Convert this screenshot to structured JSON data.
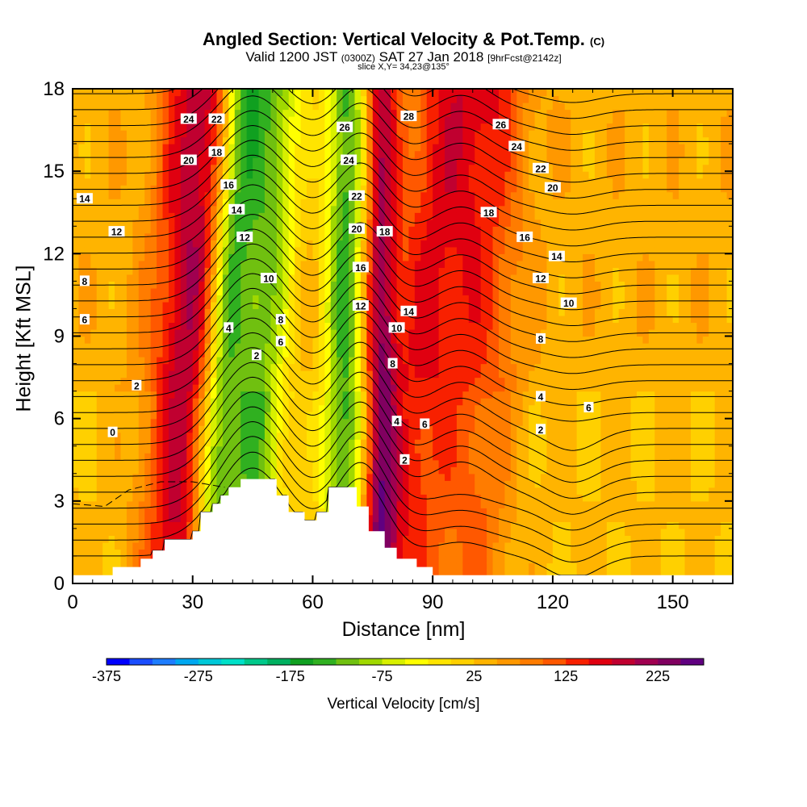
{
  "chart_data": {
    "type": "heatmap",
    "title": "Angled Section: Vertical Velocity & Pot.Temp.",
    "title_suffix": "(C)",
    "subtitle_main": "Valid 1200 JST",
    "subtitle_utc": "(0300Z)",
    "subtitle_date": "SAT 27 Jan 2018",
    "subtitle_fcst": "[9hrFcst@2142z]",
    "slice": "slice X,Y= 34,23@135°",
    "xlabel": "Distance [nm]",
    "ylabel": "Height [Kft MSL]",
    "xlim": [
      0,
      165
    ],
    "ylim": [
      0,
      18
    ],
    "x_ticks": [
      "0",
      "30",
      "60",
      "90",
      "120",
      "150"
    ],
    "y_ticks": [
      "0",
      "3",
      "6",
      "9",
      "12",
      "15",
      "18"
    ],
    "terrain_profile": [
      [
        0,
        0.3
      ],
      [
        10,
        0.3
      ],
      [
        10,
        0.6
      ],
      [
        17,
        0.6
      ],
      [
        17,
        0.9
      ],
      [
        20,
        0.9
      ],
      [
        20,
        1.2
      ],
      [
        23,
        1.2
      ],
      [
        23,
        1.6
      ],
      [
        30,
        1.6
      ],
      [
        30,
        1.9
      ],
      [
        32,
        1.9
      ],
      [
        32,
        2.6
      ],
      [
        35,
        2.6
      ],
      [
        35,
        2.9
      ],
      [
        37,
        2.9
      ],
      [
        37,
        3.2
      ],
      [
        39,
        3.2
      ],
      [
        39,
        3.5
      ],
      [
        42,
        3.5
      ],
      [
        42,
        3.8
      ],
      [
        51,
        3.8
      ],
      [
        51,
        3.2
      ],
      [
        54,
        3.2
      ],
      [
        54,
        2.6
      ],
      [
        58,
        2.6
      ],
      [
        58,
        2.3
      ],
      [
        61,
        2.3
      ],
      [
        61,
        2.6
      ],
      [
        64,
        2.6
      ],
      [
        64,
        3.5
      ],
      [
        71,
        3.5
      ],
      [
        71,
        2.8
      ],
      [
        74,
        2.8
      ],
      [
        74,
        1.9
      ],
      [
        78,
        1.9
      ],
      [
        78,
        1.3
      ],
      [
        81,
        1.3
      ],
      [
        81,
        0.9
      ],
      [
        86,
        0.9
      ],
      [
        86,
        0.6
      ],
      [
        90,
        0.6
      ],
      [
        90,
        0.3
      ],
      [
        165,
        0.3
      ]
    ],
    "theta_levels": [
      0,
      2,
      4,
      6,
      8,
      10,
      12,
      14,
      16,
      18,
      20,
      22,
      24,
      26,
      28
    ],
    "theta_labels": [
      {
        "x": 10,
        "y": 5.5,
        "text": "0"
      },
      {
        "x": 16,
        "y": 7.2,
        "text": "2"
      },
      {
        "x": 39,
        "y": 9.3,
        "text": "4"
      },
      {
        "x": 46,
        "y": 8.3,
        "text": "2"
      },
      {
        "x": 3,
        "y": 9.6,
        "text": "6"
      },
      {
        "x": 3,
        "y": 11.0,
        "text": "8"
      },
      {
        "x": 11,
        "y": 12.8,
        "text": "12"
      },
      {
        "x": 3,
        "y": 14.0,
        "text": "14"
      },
      {
        "x": 29,
        "y": 15.4,
        "text": "20"
      },
      {
        "x": 29,
        "y": 16.9,
        "text": "24"
      },
      {
        "x": 36,
        "y": 15.7,
        "text": "18"
      },
      {
        "x": 36,
        "y": 16.9,
        "text": "22"
      },
      {
        "x": 39,
        "y": 14.5,
        "text": "16"
      },
      {
        "x": 41,
        "y": 13.6,
        "text": "14"
      },
      {
        "x": 43,
        "y": 12.6,
        "text": "12"
      },
      {
        "x": 49,
        "y": 11.1,
        "text": "10"
      },
      {
        "x": 52,
        "y": 9.6,
        "text": "8"
      },
      {
        "x": 52,
        "y": 8.8,
        "text": "6"
      },
      {
        "x": 68,
        "y": 16.6,
        "text": "26"
      },
      {
        "x": 69,
        "y": 15.4,
        "text": "24"
      },
      {
        "x": 71,
        "y": 14.1,
        "text": "22"
      },
      {
        "x": 71,
        "y": 12.9,
        "text": "20"
      },
      {
        "x": 72,
        "y": 11.5,
        "text": "16"
      },
      {
        "x": 72,
        "y": 10.1,
        "text": "12"
      },
      {
        "x": 78,
        "y": 12.8,
        "text": "18"
      },
      {
        "x": 81,
        "y": 9.3,
        "text": "10"
      },
      {
        "x": 84,
        "y": 9.9,
        "text": "14"
      },
      {
        "x": 80,
        "y": 8.0,
        "text": "8"
      },
      {
        "x": 81,
        "y": 5.9,
        "text": "4"
      },
      {
        "x": 83,
        "y": 4.5,
        "text": "2"
      },
      {
        "x": 88,
        "y": 5.8,
        "text": "6"
      },
      {
        "x": 84,
        "y": 17.0,
        "text": "28"
      },
      {
        "x": 107,
        "y": 16.7,
        "text": "26"
      },
      {
        "x": 111,
        "y": 15.9,
        "text": "24"
      },
      {
        "x": 117,
        "y": 15.1,
        "text": "22"
      },
      {
        "x": 120,
        "y": 14.4,
        "text": "20"
      },
      {
        "x": 104,
        "y": 13.5,
        "text": "18"
      },
      {
        "x": 113,
        "y": 12.6,
        "text": "16"
      },
      {
        "x": 121,
        "y": 11.9,
        "text": "14"
      },
      {
        "x": 117,
        "y": 11.1,
        "text": "12"
      },
      {
        "x": 124,
        "y": 10.2,
        "text": "10"
      },
      {
        "x": 117,
        "y": 8.9,
        "text": "8"
      },
      {
        "x": 117,
        "y": 6.8,
        "text": "4"
      },
      {
        "x": 117,
        "y": 5.6,
        "text": "2"
      },
      {
        "x": 129,
        "y": 6.4,
        "text": "6"
      }
    ],
    "velocity_features": [
      {
        "kind": "updraft",
        "x": 29,
        "width": 9,
        "value": 160,
        "slope": 0.35
      },
      {
        "kind": "downdraft",
        "x": 38,
        "width": 5,
        "value": -170,
        "slope": 0.48
      },
      {
        "kind": "downdraft",
        "x": 47,
        "width": 7,
        "value": -150,
        "slope": 0.38
      },
      {
        "kind": "downdraft",
        "x": 68,
        "width": 5,
        "value": -175,
        "slope": 0.06
      },
      {
        "kind": "updraft",
        "x": 77,
        "width": 4,
        "value": 150,
        "slope": 0.0
      },
      {
        "kind": "updraft",
        "x": 88,
        "width": 11,
        "value": 110,
        "slope": 0.75
      },
      {
        "kind": "updraft",
        "x": 103,
        "width": 9,
        "value": 70,
        "slope": 0.3
      }
    ],
    "colorbar": {
      "label": "Vertical Velocity [cm/s]",
      "min": -375,
      "max": 275,
      "step": 25,
      "tick_labels": [
        "-375",
        "-275",
        "-175",
        "-75",
        "25",
        "125",
        "225"
      ],
      "colors": [
        "#0000ff",
        "#1a4dff",
        "#1e7dff",
        "#00a8f0",
        "#00c8d8",
        "#00e0c8",
        "#00c88a",
        "#00b060",
        "#10a020",
        "#30b020",
        "#70c010",
        "#a0d800",
        "#d8f000",
        "#ffff00",
        "#ffe400",
        "#ffd000",
        "#ffb400",
        "#ff9800",
        "#ff7c00",
        "#ff5800",
        "#f82000",
        "#e00010",
        "#c00030",
        "#a00050",
        "#800060",
        "#600080"
      ]
    }
  }
}
